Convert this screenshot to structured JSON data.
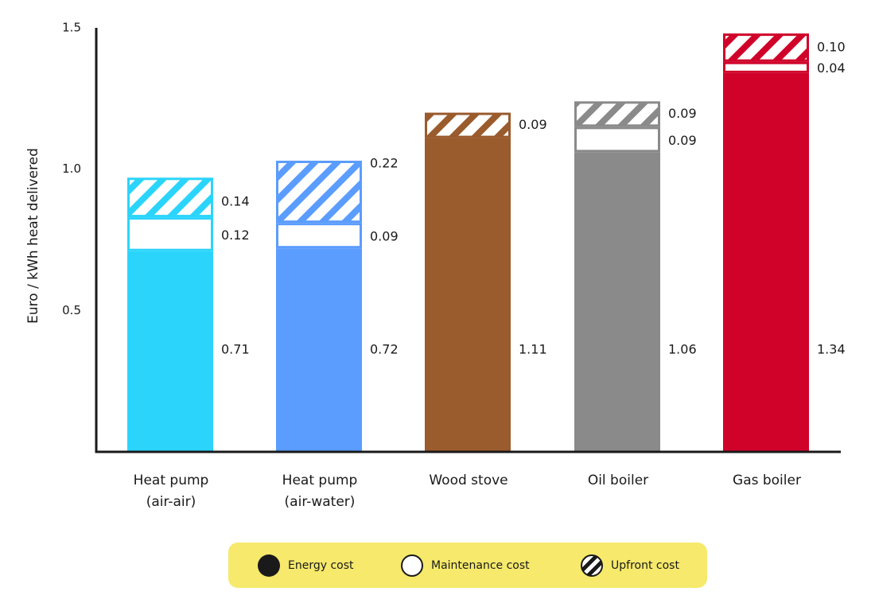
{
  "chart_data": {
    "type": "bar",
    "stacked": true,
    "ylabel": "Euro / kWh heat delivered",
    "xlabel": "",
    "ylim": [
      0,
      1.5
    ],
    "yticks": [
      "0.5",
      "1.0",
      "1.5"
    ],
    "grid": false,
    "categories": [
      [
        "Heat pump",
        "(air-air)"
      ],
      [
        "Heat pump",
        "(air-water)"
      ],
      [
        "Wood stove"
      ],
      [
        "Oil boiler"
      ],
      [
        "Gas boiler"
      ]
    ],
    "colors": [
      "#2bd4fb",
      "#5b9cff",
      "#9a5b2d",
      "#8a8a8a",
      "#d0022a"
    ],
    "series": [
      {
        "name": "Energy cost",
        "values": [
          0.71,
          0.72,
          1.11,
          1.06,
          1.34
        ],
        "labels": [
          "0.71",
          "0.72",
          "1.11",
          "1.06",
          "1.34"
        ]
      },
      {
        "name": "Maintenance cost",
        "values": [
          0.12,
          0.09,
          0.0,
          0.09,
          0.04
        ],
        "labels": [
          "0.12",
          "0.09",
          "",
          "0.09",
          "0.04"
        ]
      },
      {
        "name": "Upfront cost",
        "values": [
          0.14,
          0.22,
          0.09,
          0.09,
          0.1
        ],
        "labels": [
          "0.14",
          "0.22",
          "0.09",
          "0.09",
          "0.10"
        ]
      }
    ],
    "legend_position": "bottom"
  },
  "legend": {
    "energy": "Energy cost",
    "maintenance": "Maintenance cost",
    "upfront": "Upfront cost"
  }
}
